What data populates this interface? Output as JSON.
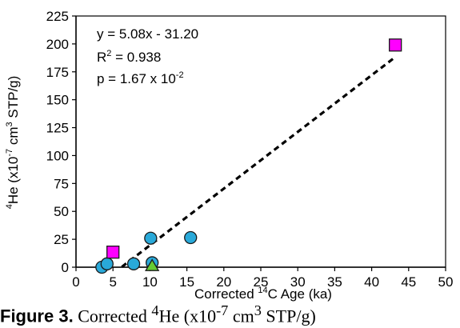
{
  "chart_data": {
    "type": "scatter",
    "title": "",
    "xlabel": {
      "pre": "Corrected ",
      "sup": "14",
      "post": "C Age (ka)"
    },
    "ylabel": {
      "sup1": "4",
      "part1": "He (x10",
      "sup2": "-7",
      "part2": " cm",
      "sup3": "3",
      "part3": " STP/g)"
    },
    "xlim": [
      0,
      50
    ],
    "ylim": [
      0,
      225
    ],
    "x_ticks": [
      "0",
      "5",
      "10",
      "15",
      "20",
      "25",
      "30",
      "35",
      "40",
      "45",
      "50"
    ],
    "y_ticks": [
      "0",
      "25",
      "50",
      "75",
      "100",
      "125",
      "150",
      "175",
      "200",
      "225"
    ],
    "grid": false,
    "series": [
      {
        "marker": "circle",
        "color": "#29a9d9",
        "points": [
          [
            3.5,
            0
          ],
          [
            4.2,
            3
          ],
          [
            7.8,
            3
          ],
          [
            10.1,
            26
          ],
          [
            10.3,
            4
          ],
          [
            15.5,
            26.5
          ]
        ]
      },
      {
        "marker": "square",
        "color": "#ff00ff",
        "points": [
          [
            5.0,
            13.5
          ],
          [
            43.2,
            199
          ]
        ]
      },
      {
        "marker": "triangle",
        "color": "#66cc33",
        "points": [
          [
            10.3,
            1
          ]
        ]
      }
    ],
    "fit_line": {
      "slope": 5.08,
      "intercept": -31.2,
      "x_range": [
        6.2,
        43.2
      ],
      "style": "dashed"
    },
    "annotations": {
      "equation": "y = 5.08x - 31.20",
      "r2_pre": "R",
      "r2_sup": "2",
      "r2_post": " = 0.938",
      "p_pre": "p = 1.67 x 10",
      "p_sup": "-2"
    }
  },
  "caption": {
    "bold": "Figure 3.",
    "pre": " Corrected ",
    "sup": "4",
    "post": "He (x10",
    "sup2": "-7",
    "post2": " cm",
    "sup3": "3",
    "post3": " STP/g)"
  }
}
